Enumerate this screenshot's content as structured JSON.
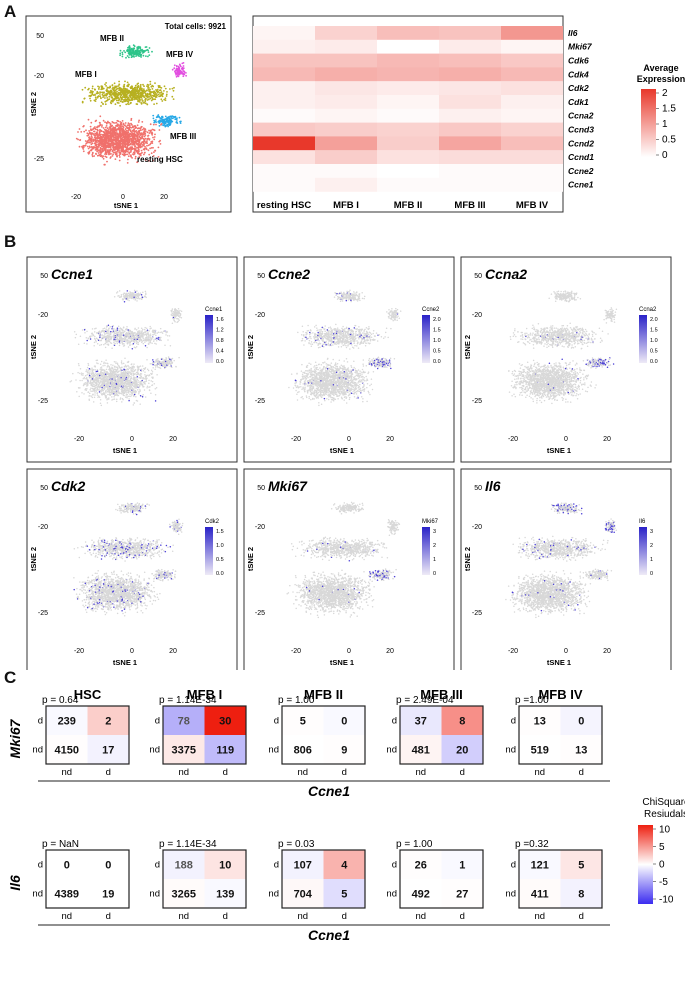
{
  "panels": {
    "a": "A",
    "b": "B",
    "c": "C"
  },
  "panel_a": {
    "tsne": {
      "total_cells": "Total cells: 9921",
      "xlabel": "tSNE 1",
      "ylabel": "tSNE 2",
      "xticks": [
        "-20",
        "0",
        "20"
      ],
      "yticks": [
        "50",
        "-20",
        "-25"
      ],
      "clusters": [
        {
          "name": "MFB II",
          "color": "#2ec48a"
        },
        {
          "name": "MFB IV",
          "color": "#e24fe0"
        },
        {
          "name": "MFB I",
          "color": "#b7b021"
        },
        {
          "name": "MFB III",
          "color": "#27a8e6"
        },
        {
          "name": "resting HSC",
          "color": "#f0716c"
        }
      ]
    },
    "heatmap": {
      "genes": [
        "Il6",
        "Mki67",
        "Cdk6",
        "Cdk4",
        "Cdk2",
        "Cdk1",
        "Ccna2",
        "Ccnd3",
        "Ccnd2",
        "Ccnd1",
        "Ccne2",
        "Ccne1"
      ],
      "clusters": [
        "resting HSC",
        "MFB I",
        "MFB II",
        "MFB III",
        "MFB IV"
      ],
      "values": [
        [
          0.1,
          0.45,
          0.65,
          0.6,
          1.05
        ],
        [
          0.15,
          0.2,
          0.0,
          0.2,
          0.1
        ],
        [
          0.6,
          0.6,
          0.7,
          0.65,
          0.55
        ],
        [
          0.7,
          0.8,
          0.75,
          0.8,
          0.7
        ],
        [
          0.15,
          0.25,
          0.2,
          0.25,
          0.3
        ],
        [
          0.15,
          0.2,
          0.1,
          0.3,
          0.15
        ],
        [
          0.05,
          0.1,
          0.05,
          0.15,
          0.1
        ],
        [
          0.55,
          0.5,
          0.45,
          0.55,
          0.45
        ],
        [
          2.0,
          0.95,
          0.5,
          0.9,
          0.65
        ],
        [
          0.3,
          0.5,
          0.3,
          0.35,
          0.35
        ],
        [
          0.05,
          0.05,
          0.0,
          0.05,
          0.05
        ],
        [
          0.05,
          0.15,
          0.05,
          0.05,
          0.05
        ]
      ],
      "legend_title_1": "Average",
      "legend_title_2": "Expression",
      "legend_ticks": [
        "2",
        "1.5",
        "1",
        "0.5",
        "0"
      ],
      "color_low": "#ffffff",
      "color_high": "#e8382b"
    }
  },
  "panel_b": {
    "xlabel": "tSNE 1",
    "ylabel": "tSNE 2",
    "xticks": [
      "-20",
      "0",
      "20"
    ],
    "yticks": [
      "50",
      "-20",
      "-25"
    ],
    "plots": [
      {
        "gene": "Ccne1",
        "legend_title": "Ccne1",
        "legend_ticks": [
          "1.6",
          "1.2",
          "0.8",
          "0.4",
          "0.0"
        ]
      },
      {
        "gene": "Ccne2",
        "legend_title": "Ccne2",
        "legend_ticks": [
          "2.0",
          "1.5",
          "1.0",
          "0.5",
          "0.0"
        ]
      },
      {
        "gene": "Ccna2",
        "legend_title": "Ccna2",
        "legend_ticks": [
          "2.0",
          "1.5",
          "1.0",
          "0.5",
          "0.0"
        ]
      },
      {
        "gene": "Cdk2",
        "legend_title": "Cdk2",
        "legend_ticks": [
          "1.5",
          "1.0",
          "0.5",
          "0.0"
        ]
      },
      {
        "gene": "Mki67",
        "legend_title": "Mki67",
        "legend_ticks": [
          "3",
          "2",
          "1",
          "0"
        ]
      },
      {
        "gene": "Il6",
        "legend_title": "Il6",
        "legend_ticks": [
          "3",
          "2",
          "1",
          "0"
        ]
      }
    ]
  },
  "panel_c": {
    "columns": [
      "HSC",
      "MFB I",
      "MFB II",
      "MFB III",
      "MFB IV"
    ],
    "x_tick_labels": [
      "nd",
      "d"
    ],
    "y_tick_labels": [
      "d",
      "nd"
    ],
    "xlabel": "Ccne1",
    "legend_title_1": "ChiSquare",
    "legend_title_2": "Resiudals",
    "legend_ticks": [
      "10",
      "5",
      "0",
      "-5",
      "-10"
    ],
    "rows": [
      {
        "gene": "Mki67",
        "tables": [
          {
            "p": "p = 0.64",
            "cells": [
              [
                239,
                2
              ],
              [
                4150,
                17
              ]
            ],
            "resid": [
              [
                -0.3,
                2.2
              ],
              [
                0.1,
                -0.6
              ]
            ]
          },
          {
            "p": "p = 1.14E-34",
            "cells": [
              [
                78,
                30
              ],
              [
                3375,
                119
              ]
            ],
            "resid": [
              [
                -3.8,
                10.5
              ],
              [
                1.0,
                -3.2
              ]
            ]
          },
          {
            "p": "p = 1.00",
            "cells": [
              [
                5,
                0
              ],
              [
                806,
                9
              ]
            ],
            "resid": [
              [
                0.1,
                -0.3
              ],
              [
                0.0,
                0.1
              ]
            ]
          },
          {
            "p": "p = 2.49E-04",
            "cells": [
              [
                37,
                8
              ],
              [
                481,
                20
              ]
            ],
            "resid": [
              [
                -1.1,
                5.0
              ],
              [
                0.5,
                -2.3
              ]
            ]
          },
          {
            "p": "p =1.00",
            "cells": [
              [
                13,
                0
              ],
              [
                519,
                13
              ]
            ],
            "resid": [
              [
                0.1,
                -0.5
              ],
              [
                0.0,
                0.1
              ]
            ]
          }
        ]
      },
      {
        "gene": "Il6",
        "tables": [
          {
            "p": "p = NaN",
            "cells": [
              [
                0,
                0
              ],
              [
                4389,
                19
              ]
            ],
            "resid": [
              [
                0,
                0
              ],
              [
                0,
                0
              ]
            ]
          },
          {
            "p": "p = 1.14E-34",
            "cells": [
              [
                188,
                10
              ],
              [
                3265,
                139
              ]
            ],
            "resid": [
              [
                -0.6,
                1.2
              ],
              [
                0.2,
                -0.3
              ]
            ]
          },
          {
            "p": "p = 0.03",
            "cells": [
              [
                107,
                4
              ],
              [
                704,
                5
              ]
            ],
            "resid": [
              [
                -0.6,
                3.4
              ],
              [
                0.3,
                -1.6
              ]
            ]
          },
          {
            "p": "p = 1.00",
            "cells": [
              [
                26,
                1
              ],
              [
                492,
                27
              ]
            ],
            "resid": [
              [
                0.1,
                -0.3
              ],
              [
                0.0,
                0.1
              ]
            ]
          },
          {
            "p": "p =0.32",
            "cells": [
              [
                121,
                5
              ],
              [
                411,
                8
              ]
            ],
            "resid": [
              [
                -0.3,
                1.1
              ],
              [
                0.2,
                -0.6
              ]
            ]
          }
        ]
      }
    ],
    "color_neg": "#3b2cf0",
    "color_pos": "#ee1f10"
  }
}
